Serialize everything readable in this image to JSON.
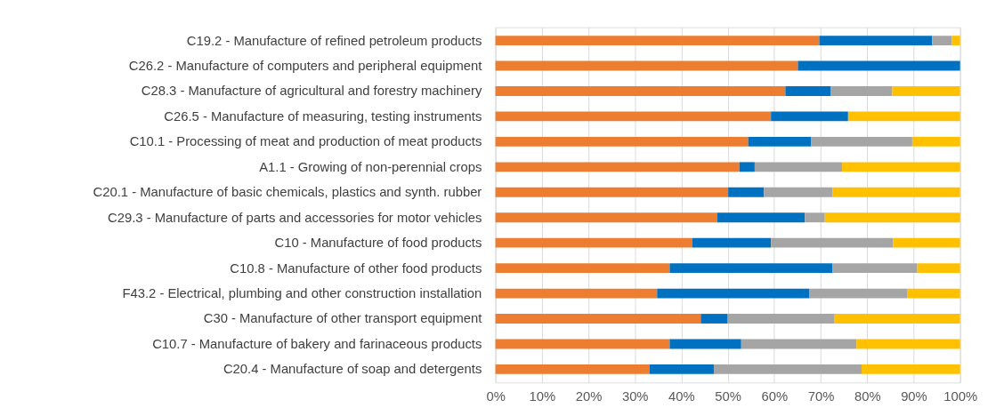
{
  "chart_data": {
    "type": "bar",
    "orientation": "horizontal",
    "stacked": true,
    "categories": [
      "C19.2 - Manufacture of refined petroleum products",
      "C26.2 - Manufacture of computers and peripheral equipment",
      "C28.3 - Manufacture of agricultural and forestry machinery",
      "C26.5 - Manufacture of measuring, testing instruments",
      "C10.1 - Processing of meat and production of meat products",
      "A1.1 - Growing of non-perennial crops",
      "C20.1 - Manufacture of basic chemicals, plastics and synth. rubber",
      "C29.3 - Manufacture of parts and accessories for motor vehicles",
      "C10 - Manufacture of food products",
      "C10.8 - Manufacture of other food products",
      "F43.2 - Electrical, plumbing and other construction installation",
      "C30 - Manufacture of other transport equipment",
      "C10.7 - Manufacture of bakery and farinaceous products",
      "C20.4 - Manufacture of soap and detergents"
    ],
    "series": [
      {
        "color": "#ed7d31",
        "values": [
          69.7,
          65.1,
          62.4,
          59.3,
          54.4,
          52.5,
          50.1,
          47.7,
          42.4,
          37.5,
          34.8,
          44.2,
          37.5,
          33.2
        ]
      },
      {
        "color": "#0070c0",
        "values": [
          24.3,
          34.9,
          9.7,
          16.6,
          13.5,
          3.3,
          7.7,
          18.9,
          16.9,
          35.0,
          32.8,
          5.8,
          15.4,
          13.8
        ]
      },
      {
        "color": "#a5a5a5",
        "values": [
          4.2,
          0,
          13.3,
          0,
          21.8,
          18.8,
          14.7,
          4.3,
          26.3,
          18.3,
          21.1,
          23.0,
          24.8,
          31.8
        ]
      },
      {
        "color": "#ffc000",
        "values": [
          1.8,
          0,
          14.6,
          24.1,
          10.3,
          25.4,
          27.5,
          29.1,
          14.4,
          9.2,
          11.3,
          27.0,
          22.3,
          21.2
        ]
      }
    ],
    "xlim": [
      0,
      100
    ],
    "xticks": [
      {
        "value": 0,
        "label": "0%"
      },
      {
        "value": 10,
        "label": "10%"
      },
      {
        "value": 20,
        "label": "20%"
      },
      {
        "value": 30,
        "label": "30%"
      },
      {
        "value": 40,
        "label": "40%"
      },
      {
        "value": 50,
        "label": "50%"
      },
      {
        "value": 60,
        "label": "60%"
      },
      {
        "value": 70,
        "label": "70%"
      },
      {
        "value": 80,
        "label": "80%"
      },
      {
        "value": 90,
        "label": "90%"
      },
      {
        "value": 100,
        "label": "100%"
      }
    ],
    "grid": "x",
    "legend": false
  }
}
